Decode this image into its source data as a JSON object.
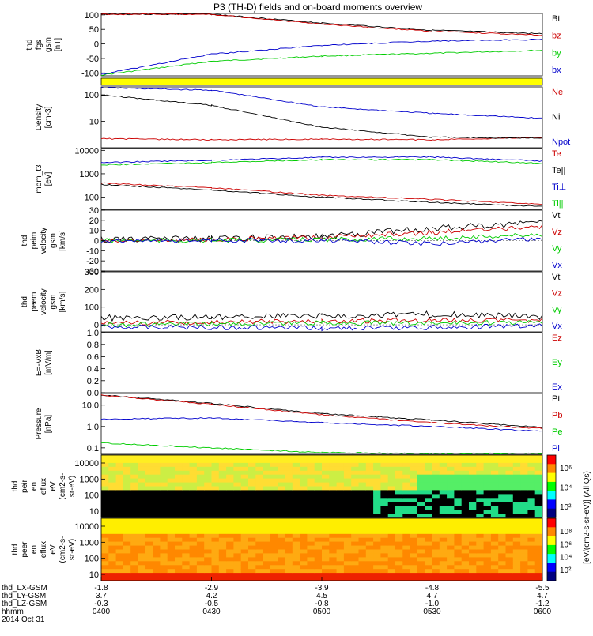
{
  "title": "P3 (TH-D) fields and on-board moments overview",
  "colors": {
    "black": "#000000",
    "red": "#cc0000",
    "green": "#00cc00",
    "blue": "#0000cc",
    "yellow": "#ffff00"
  },
  "chart_data": [
    {
      "type": "line",
      "panel": "fgs",
      "ylabel_lines": [
        "thd",
        "fgs",
        "gsm",
        "[nT]"
      ],
      "ylim": [
        -110,
        105
      ],
      "ticks": [
        "100",
        "50",
        "0",
        "-50",
        "-100"
      ],
      "tick_values": [
        100,
        50,
        0,
        -50,
        -100
      ],
      "x": [
        "0400",
        "0430",
        "0500",
        "0530",
        "0600"
      ],
      "series": [
        {
          "name": "Bt",
          "color": "#000000",
          "values": [
            130,
            105,
            72,
            47,
            35
          ]
        },
        {
          "name": "bz",
          "color": "#cc0000",
          "values": [
            125,
            102,
            68,
            43,
            30
          ]
        },
        {
          "name": "by",
          "color": "#00cc00",
          "values": [
            -108,
            -60,
            -42,
            -32,
            -22
          ]
        },
        {
          "name": "bx",
          "color": "#0000cc",
          "values": [
            -105,
            -35,
            -5,
            10,
            15
          ]
        }
      ]
    },
    {
      "type": "line",
      "panel": "density",
      "log": true,
      "ylabel_lines": [
        "Density",
        "[cm-3]"
      ],
      "ylim": [
        1,
        200
      ],
      "ticks": [
        "100",
        "10"
      ],
      "tick_values": [
        100,
        10
      ],
      "x": [
        "0400",
        "0430",
        "0500",
        "0530",
        "0600"
      ],
      "series": [
        {
          "name": "Ne",
          "color": "#cc0000",
          "values": [
            2.2,
            2.0,
            2.1,
            2.0,
            2.5
          ]
        },
        {
          "name": "Ni",
          "color": "#000000",
          "values": [
            100,
            40,
            6,
            2.5,
            2.3
          ]
        },
        {
          "name": "Npot",
          "color": "#0000cc",
          "values": [
            300,
            150,
            35,
            20,
            13
          ]
        }
      ]
    },
    {
      "type": "line",
      "panel": "temperature",
      "log": true,
      "ylabel_lines": [
        "mom_t3",
        "[eV]"
      ],
      "ylim": [
        30,
        12000
      ],
      "ticks": [
        "10000",
        "1000",
        "100"
      ],
      "tick_values": [
        10000,
        1000,
        100
      ],
      "x": [
        "0400",
        "0430",
        "0500",
        "0530",
        "0600"
      ],
      "series": [
        {
          "name": "Te⊥",
          "color": "#cc0000",
          "values": [
            400,
            250,
            120,
            80,
            50
          ]
        },
        {
          "name": "Te||",
          "color": "#000000",
          "values": [
            350,
            200,
            100,
            60,
            40
          ]
        },
        {
          "name": "Ti⊥",
          "color": "#0000cc",
          "values": [
            3000,
            3800,
            5000,
            5200,
            3500
          ]
        },
        {
          "name": "Ti||",
          "color": "#00cc00",
          "values": [
            2400,
            3000,
            4000,
            4000,
            2800
          ]
        }
      ]
    },
    {
      "type": "line",
      "panel": "peim_velocity",
      "ylabel_lines": [
        "thd",
        "peim",
        "velocity",
        "gsm",
        "[km/s]"
      ],
      "ylim": [
        -30,
        30
      ],
      "ticks": [
        "30",
        "20",
        "10",
        "0",
        "-10",
        "-20",
        "-30"
      ],
      "tick_values": [
        30,
        20,
        10,
        0,
        -10,
        -20,
        -30
      ],
      "x": [
        "0400",
        "0430",
        "0500",
        "0530",
        "0600"
      ],
      "series": [
        {
          "name": "Vt",
          "color": "#000000",
          "values": [
            1,
            2,
            4,
            12,
            18
          ]
        },
        {
          "name": "Vz",
          "color": "#cc0000",
          "values": [
            0,
            1,
            3,
            8,
            14
          ]
        },
        {
          "name": "Vy",
          "color": "#00cc00",
          "values": [
            0,
            0,
            1,
            2,
            6
          ]
        },
        {
          "name": "Vx",
          "color": "#0000cc",
          "values": [
            0,
            0,
            0,
            -3,
            2
          ]
        }
      ]
    },
    {
      "type": "line",
      "panel": "peem_velocity",
      "ylabel_lines": [
        "thd",
        "peem",
        "velocity",
        "gsm",
        "[km/s]"
      ],
      "ylim": [
        -40,
        300
      ],
      "ticks": [
        "300",
        "200",
        "100",
        "0"
      ],
      "tick_values": [
        300,
        200,
        100,
        0
      ],
      "x": [
        "0400",
        "0430",
        "0500",
        "0530",
        "0600"
      ],
      "series": [
        {
          "name": "Vt",
          "color": "#000000",
          "values": [
            40,
            45,
            50,
            60,
            45
          ]
        },
        {
          "name": "Vz",
          "color": "#cc0000",
          "values": [
            10,
            15,
            20,
            25,
            25
          ]
        },
        {
          "name": "Vy",
          "color": "#00cc00",
          "values": [
            0,
            5,
            10,
            10,
            15
          ]
        },
        {
          "name": "Vx",
          "color": "#0000cc",
          "values": [
            -10,
            -15,
            -20,
            -15,
            -5
          ]
        }
      ]
    },
    {
      "type": "line",
      "panel": "efield",
      "ylabel_lines": [
        "E=-VxB",
        "[mV/m]"
      ],
      "ylim": [
        0,
        1
      ],
      "ticks": [
        "1.0",
        "0.8",
        "0.6",
        "0.4",
        "0.2",
        "0.0"
      ],
      "tick_values": [
        1.0,
        0.8,
        0.6,
        0.4,
        0.2,
        0.0
      ],
      "series": [
        {
          "name": "Ez",
          "color": "#cc0000",
          "values": []
        },
        {
          "name": "Ey",
          "color": "#00cc00",
          "values": []
        },
        {
          "name": "Ex",
          "color": "#0000cc",
          "values": []
        }
      ]
    },
    {
      "type": "line",
      "panel": "pressure",
      "log": true,
      "ylabel_lines": [
        "Pressure",
        "[nPa]"
      ],
      "ylim": [
        0.05,
        35
      ],
      "ticks": [
        "10.0",
        "1.0",
        "0.1"
      ],
      "tick_values": [
        10,
        1,
        0.1
      ],
      "x": [
        "0400",
        "0430",
        "0500",
        "0530",
        "0600"
      ],
      "series": [
        {
          "name": "Pt",
          "color": "#000000",
          "values": [
            30,
            12,
            4,
            2,
            0.9
          ]
        },
        {
          "name": "Pb",
          "color": "#cc0000",
          "values": [
            29,
            11,
            3.5,
            1.5,
            0.8
          ]
        },
        {
          "name": "Pe",
          "color": "#00cc00",
          "values": [
            0.17,
            0.1,
            0.06,
            0.05,
            0.05
          ]
        },
        {
          "name": "Pi",
          "color": "#0000cc",
          "values": [
            2.2,
            2.5,
            1.5,
            1.0,
            0.6
          ]
        }
      ]
    },
    {
      "type": "heatmap",
      "panel": "peir_eflux",
      "ylabel_lines": [
        "thd",
        "peir",
        "en",
        "eflux",
        "eV",
        "(cm2-s-",
        "sr-eV)"
      ],
      "ticks": [
        "10000",
        "1000",
        "100",
        "10"
      ],
      "tick_values": [
        10000,
        1000,
        100,
        10
      ],
      "colorbar_label": "[eV/(cm2-s-sr-eV)] (All Qs)",
      "colorbar_ticks": [
        "10⁶",
        "10⁴",
        "10²"
      ]
    },
    {
      "type": "heatmap",
      "panel": "peer_eflux",
      "ylabel_lines": [
        "thd",
        "peer",
        "en",
        "eflux",
        "eV",
        "(cm2-s-",
        "sr-eV)"
      ],
      "ticks": [
        "10000",
        "1000",
        "100",
        "10"
      ],
      "tick_values": [
        10000,
        1000,
        100,
        10
      ],
      "colorbar_label": "[eV/(cm2-s-sr-eV)] (All Qs)",
      "colorbar_ticks": [
        "10⁸",
        "10⁶",
        "10⁴",
        "10²"
      ]
    }
  ],
  "xaxis": {
    "rows": [
      {
        "label": "thd_LX-GSM",
        "values": [
          "-1.8",
          "-2.9",
          "-3.9",
          "-4.8",
          "-5.5"
        ]
      },
      {
        "label": "thd_LY-GSM",
        "values": [
          "3.7",
          "4.2",
          "4.5",
          "4.7",
          "4.7"
        ]
      },
      {
        "label": "thd_LZ-GSM",
        "values": [
          "-0.3",
          "-0.5",
          "-0.8",
          "-1.0",
          "-1.2"
        ]
      },
      {
        "label": "hhmm",
        "values": [
          "0400",
          "0430",
          "0500",
          "0530",
          "0600"
        ]
      }
    ],
    "date": "2014 Oct 31"
  }
}
